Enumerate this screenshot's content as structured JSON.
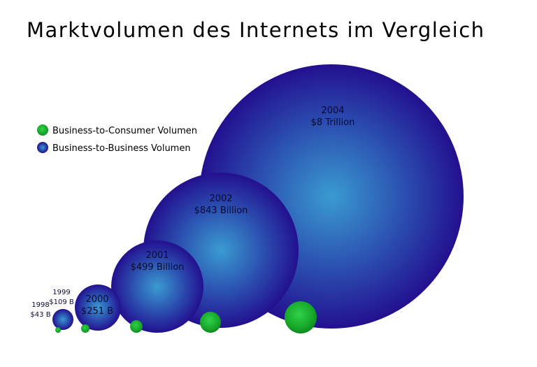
{
  "chart_data": {
    "type": "bubble",
    "title": "Marktvolumen des Internets im Vergleich",
    "legend": {
      "placement": "left",
      "entries": [
        {
          "key": "b2c",
          "label": "Business-to-Consumer Volumen",
          "color": "#1aa52a"
        },
        {
          "key": "b2b",
          "label": "Business-to-Business Volumen",
          "color": "#2a1a9e"
        }
      ]
    },
    "points": [
      {
        "year": "1998",
        "label": "$43 B",
        "b2b_billion": 43,
        "b2c_billion": 8
      },
      {
        "year": "1999",
        "label": "$109 B",
        "b2b_billion": 109,
        "b2c_billion": 20
      },
      {
        "year": "2000",
        "label": "$251 B",
        "b2b_billion": 251,
        "b2c_billion": 45
      },
      {
        "year": "2001",
        "label": "$499 Billion",
        "b2b_billion": 499,
        "b2c_billion": 100
      },
      {
        "year": "2002",
        "label": "$843 Billion",
        "b2b_billion": 843,
        "b2c_billion": 250
      },
      {
        "year": "2004",
        "label": "$8 Trillion",
        "b2b_billion": 8000,
        "b2c_billion": 650
      }
    ]
  }
}
